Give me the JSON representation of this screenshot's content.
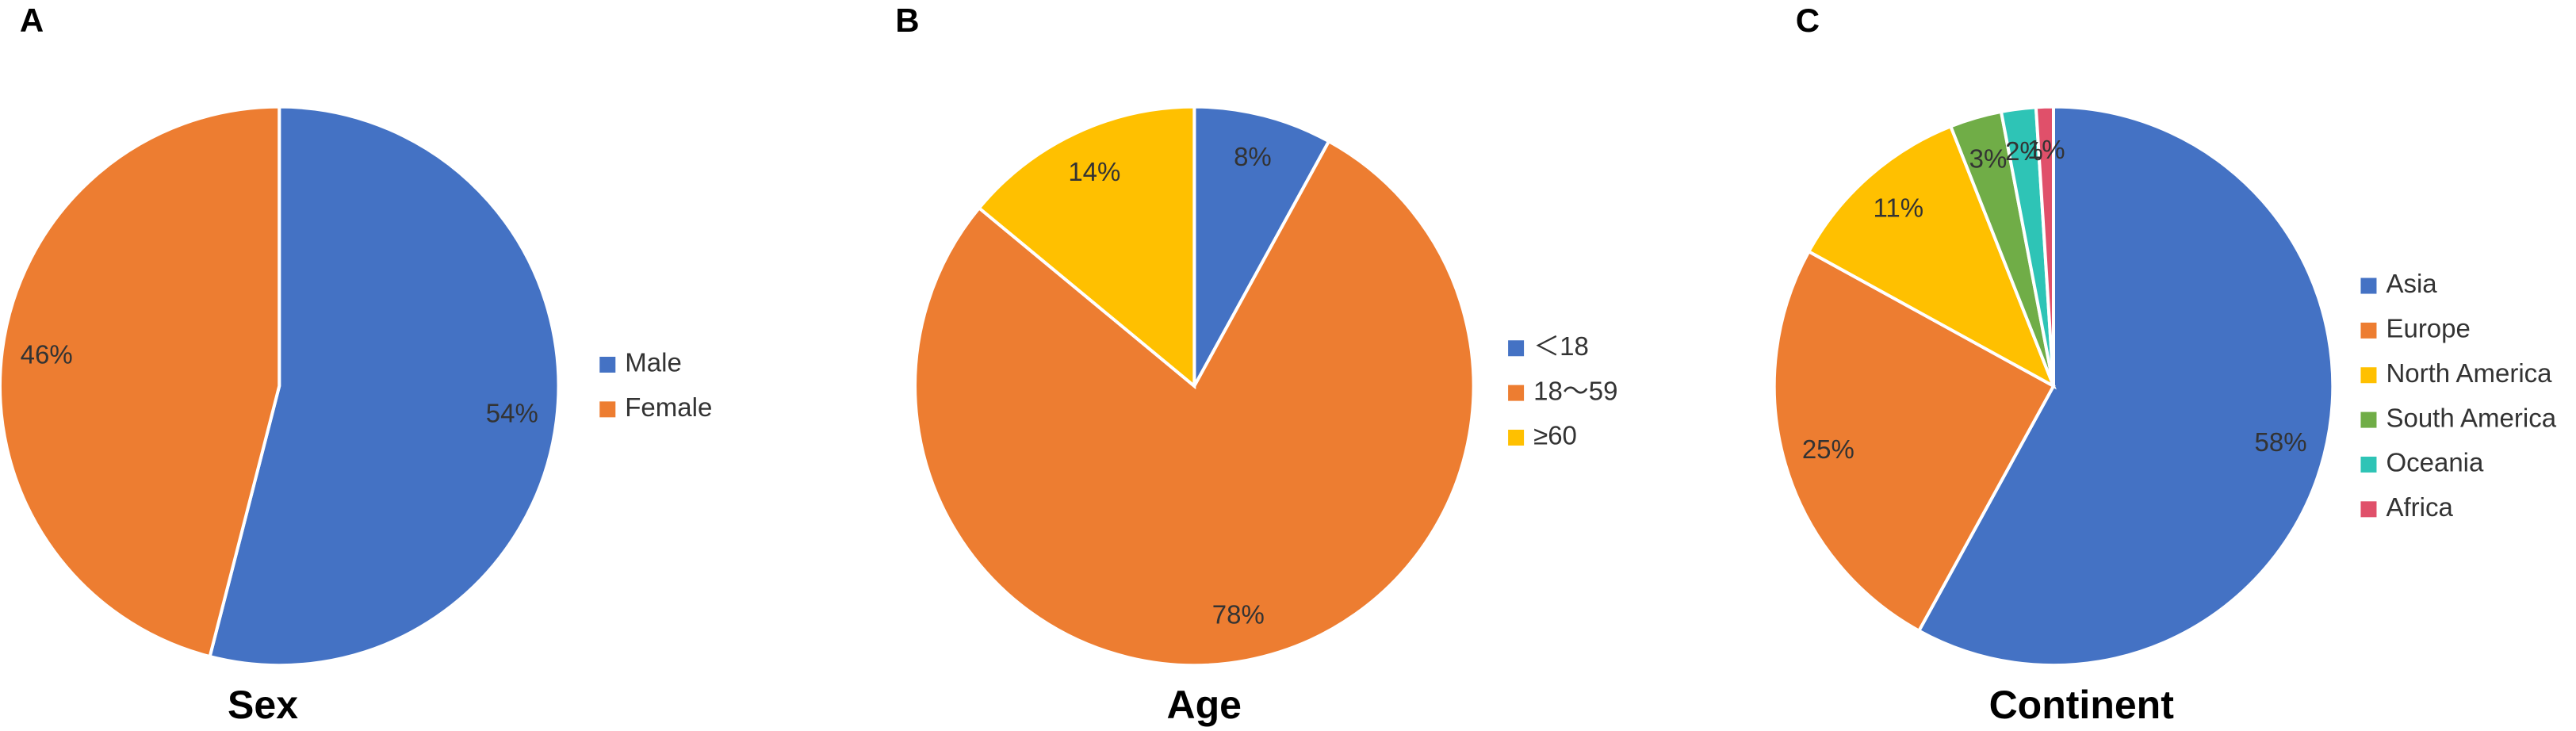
{
  "chart_data": [
    {
      "type": "pie",
      "panel_label": "A",
      "title": "Sex",
      "categories": [
        "Male",
        "Female"
      ],
      "values": [
        54,
        46
      ],
      "value_labels": [
        "54%",
        "46%"
      ],
      "colors": [
        "#4472c4",
        "#ed7d31"
      ]
    },
    {
      "type": "pie",
      "panel_label": "B",
      "title": "Age",
      "categories": [
        "＜18",
        "18～59",
        "≥60"
      ],
      "values": [
        8,
        78,
        14
      ],
      "value_labels": [
        "8%",
        "78%",
        "14%"
      ],
      "colors": [
        "#4472c4",
        "#ed7d31",
        "#ffc000"
      ]
    },
    {
      "type": "pie",
      "panel_label": "C",
      "title": "Continent",
      "categories": [
        "Asia",
        "Europe",
        "North America",
        "South America",
        "Oceania",
        "Africa"
      ],
      "values": [
        58,
        25,
        11,
        3,
        2,
        1
      ],
      "value_labels": [
        "58%",
        "25%",
        "11%",
        "3%",
        "2%",
        "1%"
      ],
      "colors": [
        "#4472c4",
        "#ed7d31",
        "#ffc000",
        "#70ad47",
        "#2ec4b6",
        "#e0506a"
      ]
    }
  ]
}
